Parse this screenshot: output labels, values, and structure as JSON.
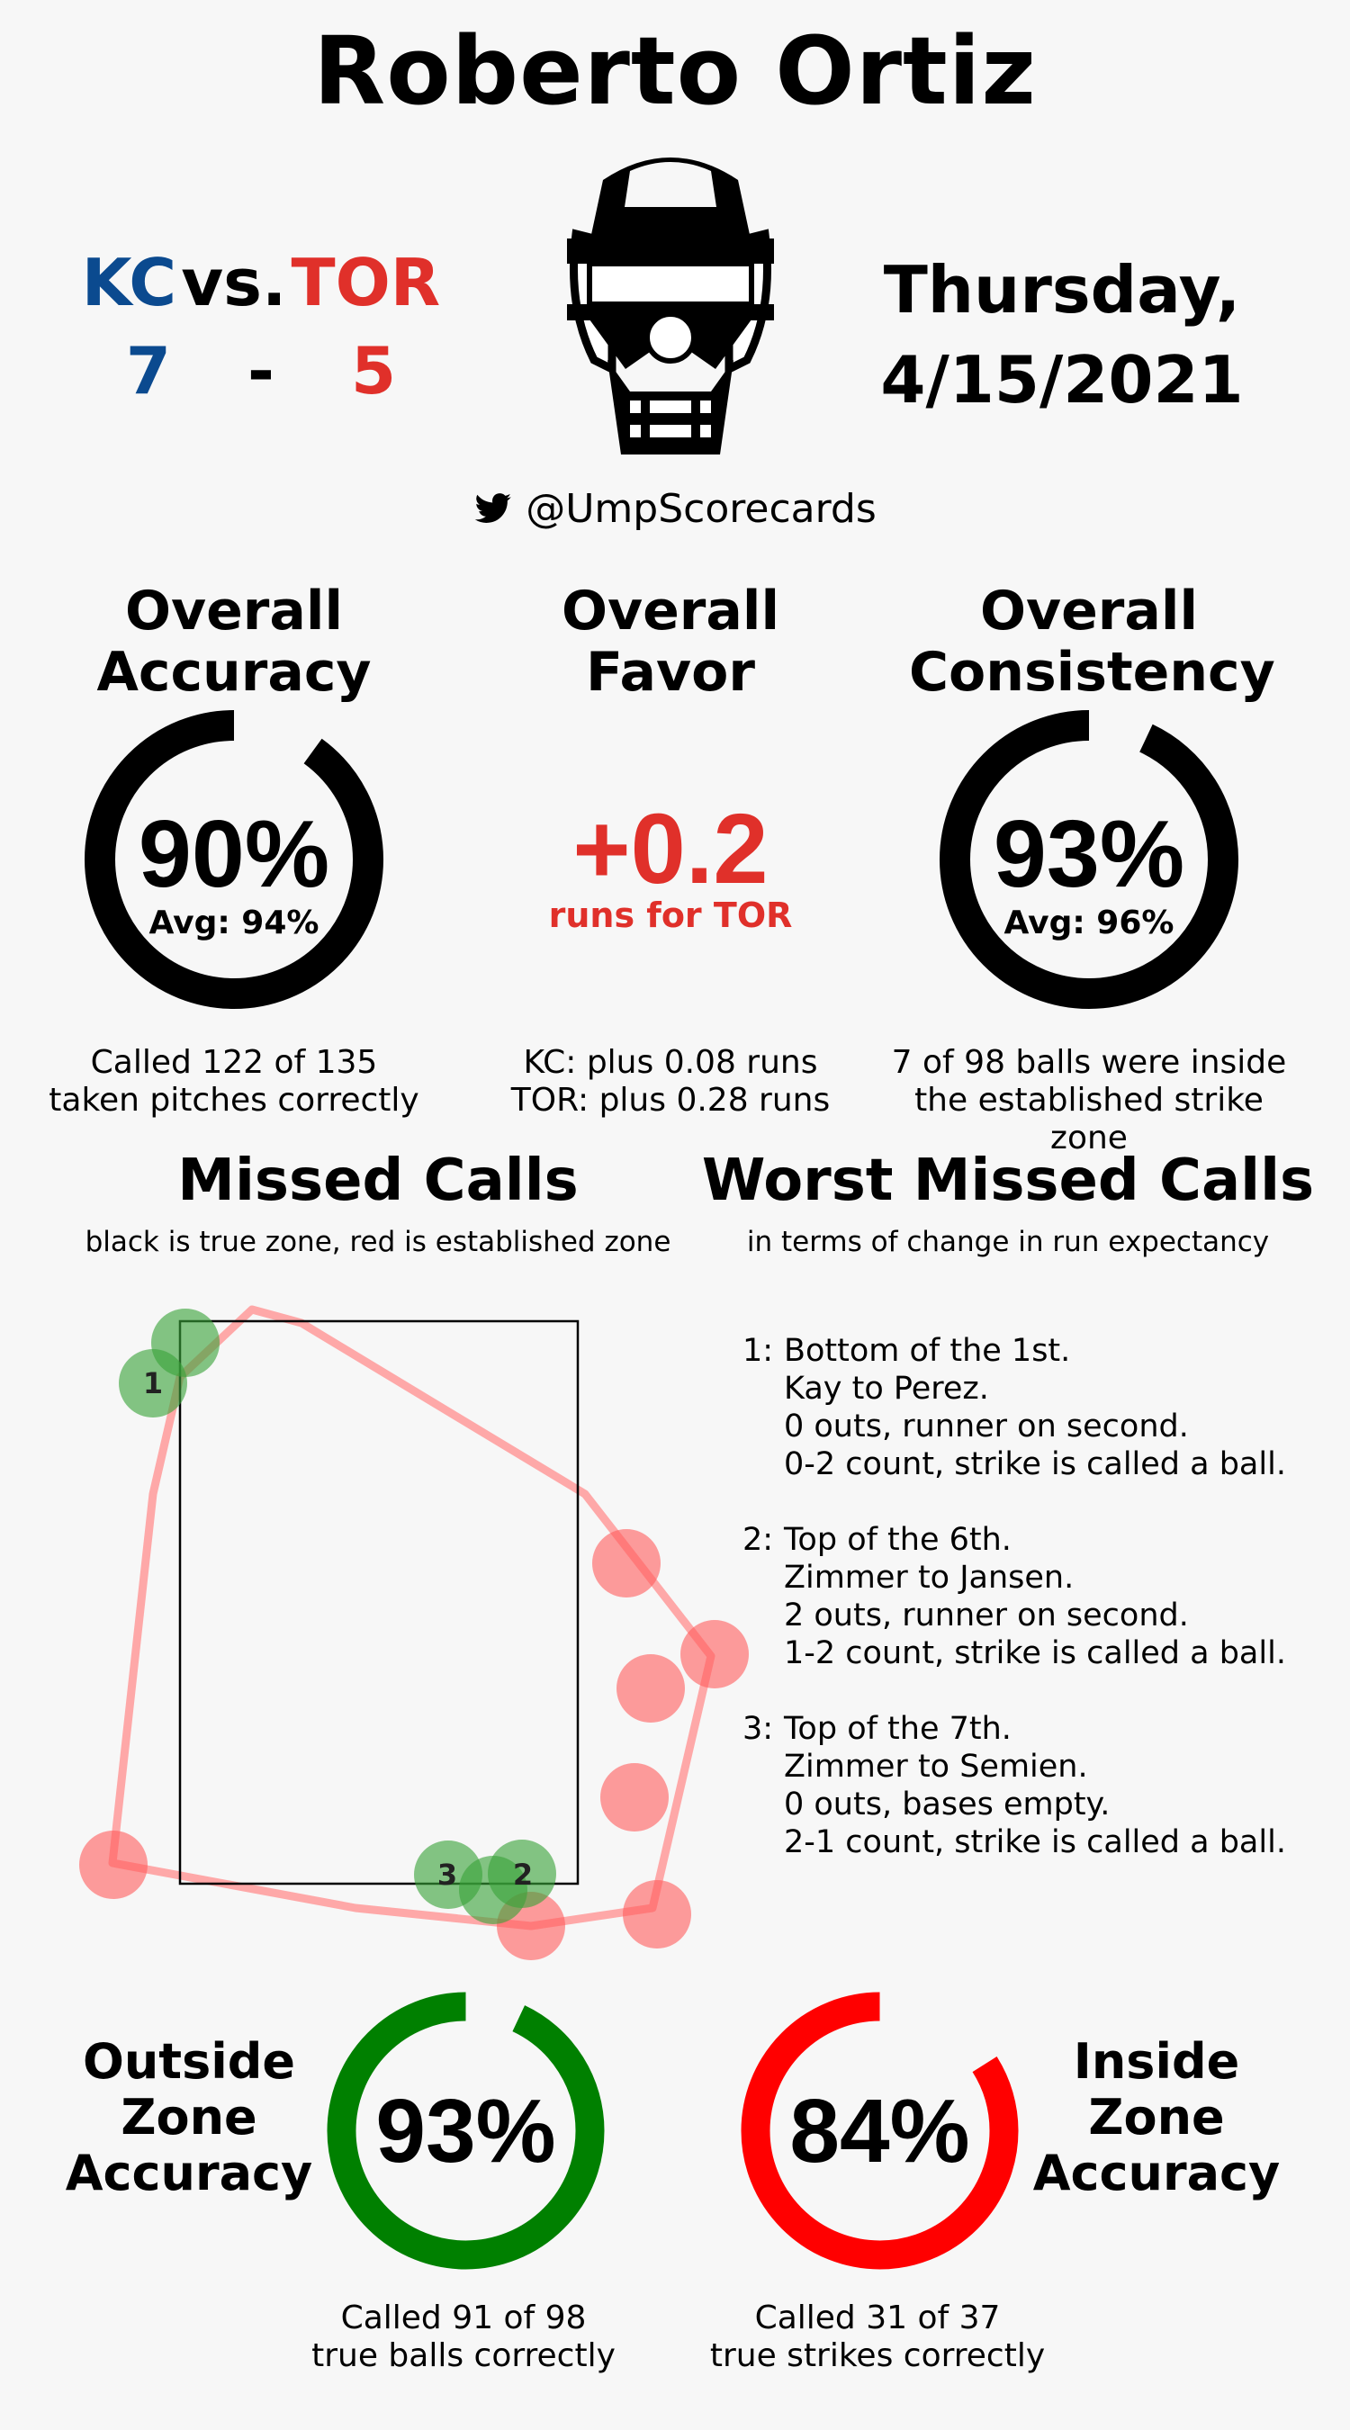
{
  "title": "Roberto Ortiz",
  "game": {
    "home_team": "KC",
    "vs": "vs.",
    "away_team": "TOR",
    "home_score": "7",
    "dash": "-",
    "away_score": "5",
    "date_line1": "Thursday,",
    "date_line2": "4/15/2021",
    "home_color": "#0b4a8f",
    "away_color": "#e0302a"
  },
  "handle": "@UmpScorecards",
  "accuracy": {
    "title_line1": "Overall",
    "title_line2": "Accuracy",
    "value": "90%",
    "avg": "Avg: 94%",
    "fraction": 0.9,
    "caption_line1": "Called 122 of 135",
    "caption_line2": "taken pitches correctly"
  },
  "favor": {
    "title_line1": "Overall",
    "title_line2": "Favor",
    "value": "+0.2",
    "unit": "runs for TOR",
    "caption_line1": "KC: plus 0.08 runs",
    "caption_line2": "TOR: plus 0.28 runs"
  },
  "consistency": {
    "title_line1": "Overall",
    "title_line2": "Consistency",
    "value": "93%",
    "avg": "Avg: 96%",
    "fraction": 0.93,
    "caption_line1": "7 of 98 balls were inside",
    "caption_line2": "the established strike zone"
  },
  "missed_calls": {
    "title": "Missed Calls",
    "subtitle": "black is true zone, red is established zone",
    "labels": [
      "1",
      "2",
      "3"
    ]
  },
  "worst_missed": {
    "title": "Worst Missed Calls",
    "subtitle": "in terms of change in run expectancy",
    "items": [
      {
        "num": "1:",
        "lines": [
          "Bottom of the 1st.",
          "Kay to Perez.",
          "0 outs, runner on second.",
          "0-2 count, strike is called a ball."
        ]
      },
      {
        "num": "2:",
        "lines": [
          "Top of the 6th.",
          "Zimmer to Jansen.",
          "2 outs, runner on second.",
          "1-2 count, strike is called a ball."
        ]
      },
      {
        "num": "3:",
        "lines": [
          "Top of the 7th.",
          "Zimmer to Semien.",
          "0 outs, bases empty.",
          "2-1 count, strike is called a ball."
        ]
      }
    ]
  },
  "outside_zone": {
    "title_line1": "Outside",
    "title_line2": "Zone",
    "title_line3": "Accuracy",
    "value": "93%",
    "fraction": 0.93,
    "color": "#008000",
    "caption_line1": "Called 91 of 98",
    "caption_line2": "true balls correctly"
  },
  "inside_zone": {
    "title_line1": "Inside",
    "title_line2": "Zone",
    "title_line3": "Accuracy",
    "value": "84%",
    "fraction": 0.84,
    "color": "#ff0000",
    "caption_line1": "Called 31 of 37",
    "caption_line2": "true strikes correctly"
  }
}
